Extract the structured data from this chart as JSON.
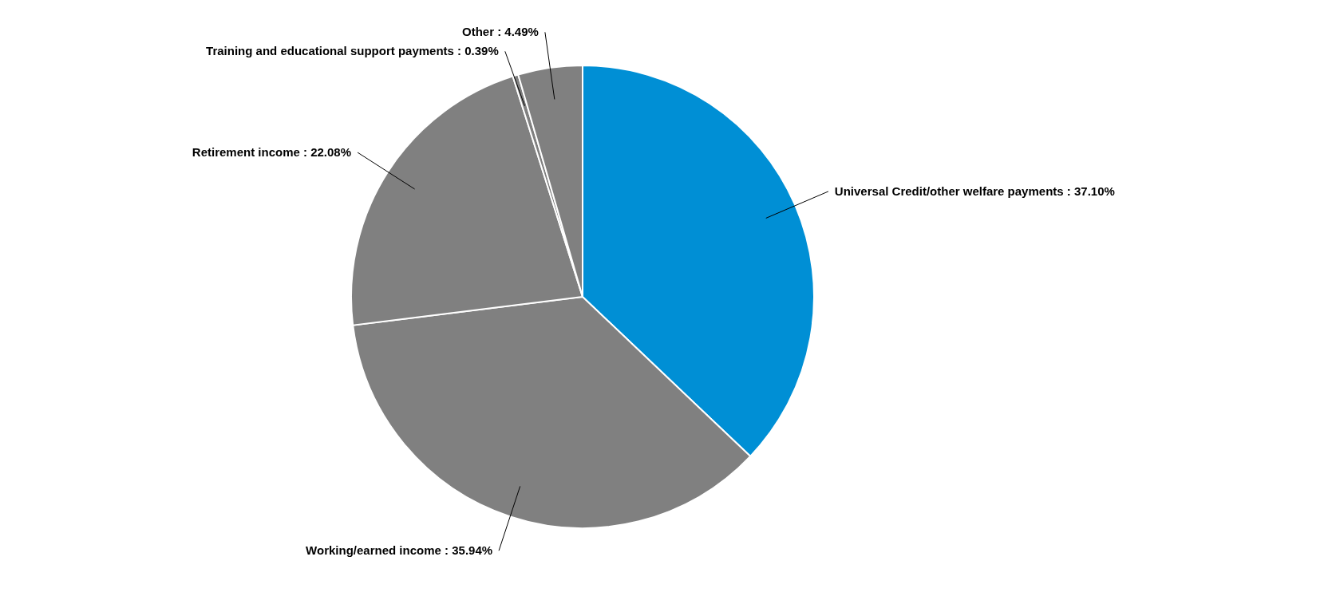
{
  "chart_data": {
    "type": "pie",
    "categories": [
      "Universal Credit/other welfare payments",
      "Working/earned income",
      "Retirement income",
      "Training and educational support payments",
      "Other"
    ],
    "values": [
      37.1,
      35.94,
      22.08,
      0.39,
      4.49
    ],
    "value_labels": [
      "37.10%",
      "35.94%",
      "22.08%",
      "0.39%",
      "4.49%"
    ],
    "colors": [
      "#008fd5",
      "#808080",
      "#808080",
      "#808080",
      "#808080"
    ],
    "legend": false
  }
}
